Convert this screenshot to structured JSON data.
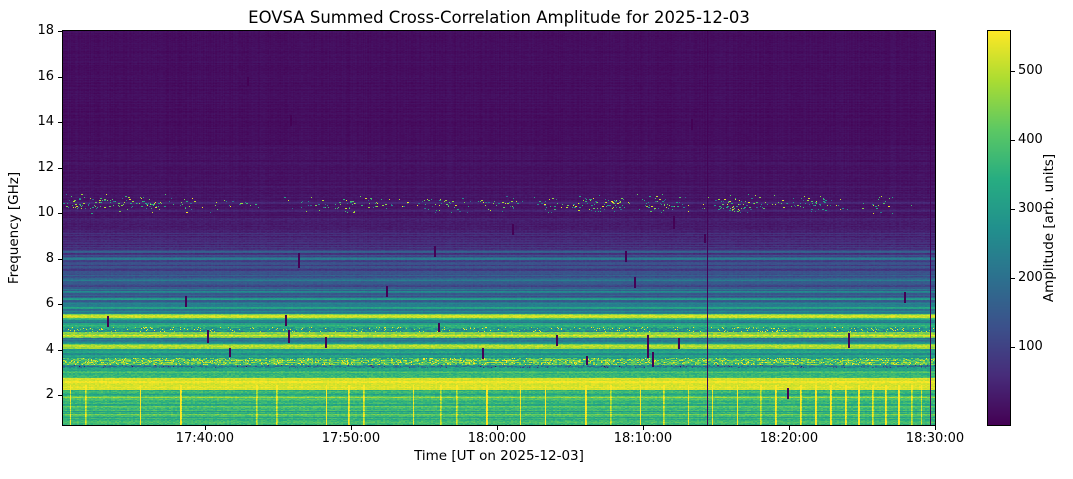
{
  "chart_data": {
    "type": "heatmap",
    "title": "EOVSA Summed Cross-Correlation Amplitude for 2025-12-03",
    "xlabel": "Time [UT on 2025-12-03]",
    "ylabel": "Frequency [GHz]",
    "x_axis": {
      "start_time": "17:30:17",
      "end_time": "18:30:00",
      "tick_labels": [
        "17:40:00",
        "17:50:00",
        "18:00:00",
        "18:10:00",
        "18:20:00",
        "18:30:00"
      ]
    },
    "y_axis": {
      "min_ghz": 0.7,
      "max_ghz": 18,
      "tick_labels": [
        2,
        4,
        6,
        8,
        10,
        12,
        14,
        16,
        18
      ]
    },
    "colorbar": {
      "label": "Amplitude [arb. units]",
      "ticks": [
        100,
        200,
        300,
        400,
        500
      ],
      "vmin": -13,
      "vmax": 558,
      "colormap": "viridis"
    },
    "spectrum_bands": [
      {
        "fhi": 18.0,
        "flo": 13.0,
        "amp": 8,
        "rvar": 6,
        "noise": 5,
        "spikes": 0
      },
      {
        "fhi": 13.0,
        "flo": 11.2,
        "amp": 14,
        "rvar": 8,
        "noise": 6,
        "spikes": 0
      },
      {
        "fhi": 11.2,
        "flo": 9.8,
        "amp": 20,
        "rvar": 9,
        "noise": 7,
        "spikes": 0
      },
      {
        "fhi": 9.8,
        "flo": 9.2,
        "amp": 35,
        "rvar": 14,
        "noise": 9,
        "spikes": 0
      },
      {
        "fhi": 9.2,
        "flo": 8.6,
        "amp": 52,
        "rvar": 20,
        "noise": 10,
        "spikes": 0
      },
      {
        "fhi": 8.6,
        "flo": 8.15,
        "amp": 75,
        "rvar": 26,
        "noise": 11,
        "spikes": 0
      },
      {
        "fhi": 8.15,
        "flo": 7.95,
        "amp": 140,
        "rvar": 55,
        "noise": 14,
        "spikes": 0
      },
      {
        "fhi": 7.95,
        "flo": 7.3,
        "amp": 105,
        "rvar": 32,
        "noise": 12,
        "spikes": 0
      },
      {
        "fhi": 7.3,
        "flo": 6.7,
        "amp": 140,
        "rvar": 42,
        "noise": 13,
        "spikes": 0
      },
      {
        "fhi": 6.7,
        "flo": 6.1,
        "amp": 175,
        "rvar": 52,
        "noise": 14,
        "spikes": 0
      },
      {
        "fhi": 6.1,
        "flo": 5.58,
        "amp": 230,
        "rvar": 60,
        "noise": 16,
        "spikes": 0
      },
      {
        "fhi": 5.58,
        "flo": 5.32,
        "amp": 420,
        "rvar": 90,
        "noise": 22,
        "spikes": 0
      },
      {
        "fhi": 5.32,
        "flo": 5.0,
        "amp": 258,
        "rvar": 62,
        "noise": 18,
        "spikes": 0
      },
      {
        "fhi": 5.0,
        "flo": 4.78,
        "amp": 300,
        "rvar": 60,
        "noise": 60,
        "spikes": 1
      },
      {
        "fhi": 4.78,
        "flo": 4.5,
        "amp": 458,
        "rvar": 55,
        "noise": 35,
        "spikes": 0
      },
      {
        "fhi": 4.5,
        "flo": 4.27,
        "amp": 250,
        "rvar": 55,
        "noise": 22,
        "spikes": 0
      },
      {
        "fhi": 4.27,
        "flo": 4.05,
        "amp": 472,
        "rvar": 40,
        "noise": 28,
        "spikes": 0
      },
      {
        "fhi": 4.05,
        "flo": 3.65,
        "amp": 305,
        "rvar": 62,
        "noise": 24,
        "spikes": 0
      },
      {
        "fhi": 3.65,
        "flo": 3.35,
        "amp": 400,
        "rvar": 50,
        "noise": 95,
        "spikes": 1
      },
      {
        "fhi": 3.35,
        "flo": 3.2,
        "amp": 252,
        "rvar": 42,
        "noise": 70,
        "spikes": -1
      },
      {
        "fhi": 3.2,
        "flo": 2.95,
        "amp": 322,
        "rvar": 45,
        "noise": 28,
        "spikes": 0
      },
      {
        "fhi": 2.95,
        "flo": 2.78,
        "amp": 400,
        "rvar": 50,
        "noise": 28,
        "spikes": 0
      },
      {
        "fhi": 2.78,
        "flo": 2.25,
        "amp": 532,
        "rvar": 22,
        "noise": 16,
        "spikes": 0
      },
      {
        "fhi": 2.25,
        "flo": 0.7,
        "amp": 352,
        "rvar": 50,
        "noise": 28,
        "spikes": 0
      }
    ],
    "bright_lines": [
      {
        "f": 10.45,
        "amp": 60
      },
      {
        "f": 10.1,
        "amp": 52
      },
      {
        "f": 8.3,
        "amp": 185
      },
      {
        "f": 8.0,
        "amp": 235
      },
      {
        "f": 7.05,
        "amp": 230
      },
      {
        "f": 6.55,
        "amp": 265
      },
      {
        "f": 6.23,
        "amp": 345
      },
      {
        "f": 5.85,
        "amp": 330
      },
      {
        "f": 5.45,
        "amp": 540
      },
      {
        "f": 5.05,
        "amp": 400
      },
      {
        "f": 4.62,
        "amp": 530
      },
      {
        "f": 4.15,
        "amp": 500
      },
      {
        "f": 3.0,
        "amp": 400
      },
      {
        "f": 1.9,
        "amp": 480
      },
      {
        "f": 1.5,
        "amp": 430
      },
      {
        "f": 1.15,
        "amp": 445
      }
    ],
    "speckle_band": {
      "f_hi": 10.85,
      "f_lo": 9.95,
      "amp_min": 170,
      "amp_max": 560,
      "base_density": 0.04,
      "clusters": [
        [
          0.012,
          0.02,
          0.55
        ],
        [
          0.05,
          0.025,
          0.5
        ],
        [
          0.1,
          0.02,
          0.4
        ],
        [
          0.145,
          0.012,
          0.35
        ],
        [
          0.2,
          0.012,
          0.3
        ],
        [
          0.275,
          0.008,
          0.25
        ],
        [
          0.345,
          0.035,
          0.4
        ],
        [
          0.43,
          0.025,
          0.35
        ],
        [
          0.5,
          0.018,
          0.45
        ],
        [
          0.555,
          0.012,
          0.4
        ],
        [
          0.615,
          0.035,
          0.8
        ],
        [
          0.69,
          0.02,
          0.7
        ],
        [
          0.77,
          0.03,
          0.8
        ],
        [
          0.86,
          0.025,
          0.45
        ],
        [
          0.935,
          0.012,
          0.4
        ]
      ]
    },
    "dropout_columns": [
      "18:14:23",
      "18:29:39"
    ],
    "dropout_ticks": [
      [
        0.05,
        5.25,
        10
      ],
      [
        0.14,
        6.15,
        9
      ],
      [
        0.165,
        4.6,
        11
      ],
      [
        0.19,
        3.9,
        8
      ],
      [
        0.211,
        15.8,
        8
      ],
      [
        0.26,
        14.1,
        10
      ],
      [
        0.255,
        5.3,
        9
      ],
      [
        0.258,
        4.62,
        12
      ],
      [
        0.27,
        7.93,
        14
      ],
      [
        0.3,
        4.35,
        9
      ],
      [
        0.37,
        6.6,
        10
      ],
      [
        0.425,
        8.35,
        9
      ],
      [
        0.43,
        5.0,
        8
      ],
      [
        0.48,
        3.85,
        9
      ],
      [
        0.515,
        9.3,
        10
      ],
      [
        0.565,
        4.45,
        10
      ],
      [
        0.6,
        3.55,
        8
      ],
      [
        0.645,
        8.1,
        10
      ],
      [
        0.655,
        7.0,
        9
      ],
      [
        0.67,
        4.15,
        22
      ],
      [
        0.675,
        3.6,
        14
      ],
      [
        0.7,
        9.6,
        12
      ],
      [
        0.705,
        4.3,
        10
      ],
      [
        0.72,
        13.9,
        10
      ],
      [
        0.735,
        8.9,
        8
      ],
      [
        0.83,
        2.1,
        10
      ],
      [
        0.9,
        4.45,
        14
      ],
      [
        0.965,
        6.3,
        9
      ]
    ],
    "bottom_streaks": [
      0.008,
      0.0252,
      0.0883,
      0.1342,
      0.2213,
      0.2443,
      0.3016,
      0.3268,
      0.344,
      0.4014,
      0.4323,
      0.4507,
      0.4851,
      0.5241,
      0.5528,
      0.5986,
      0.6273,
      0.6617,
      0.6881,
      0.7167,
      0.7443,
      0.7729,
      0.7993,
      0.8165,
      0.8452,
      0.8624,
      0.8796,
      0.8968,
      0.9117,
      0.9278,
      0.9427,
      0.9576,
      0.9725,
      0.9839
    ],
    "streak_f_top": 2.45
  },
  "colors": {
    "background": "#ffffff",
    "text": "#000000",
    "viridis_low": "#440154",
    "viridis_mid": "#21908d",
    "viridis_high": "#fde725"
  }
}
